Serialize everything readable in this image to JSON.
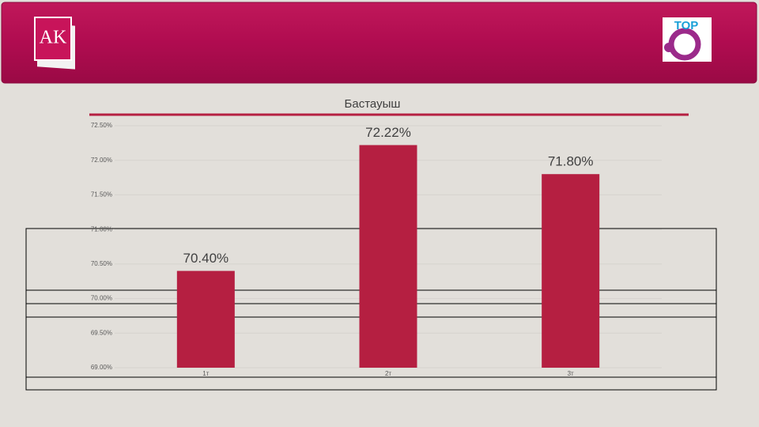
{
  "header": {
    "logo_left": "AK",
    "logo_right": "TOP"
  },
  "chart_data": {
    "type": "bar",
    "title": "Бастауыш",
    "categories": [
      "1т",
      "2т",
      "3т"
    ],
    "values": [
      70.4,
      72.22,
      71.8
    ],
    "value_labels": [
      "70.40%",
      "72.22%",
      "71.80%"
    ],
    "color": "#b51f41",
    "ylim": [
      69,
      72.5
    ],
    "yticks": [
      {
        "value": 69,
        "label": "69.00%"
      },
      {
        "value": 69.5,
        "label": "69.50%"
      },
      {
        "value": 70,
        "label": "70.00%"
      },
      {
        "value": 70.5,
        "label": "70.50%"
      },
      {
        "value": 71,
        "label": "71.00%"
      },
      {
        "value": 71.5,
        "label": "71.50%"
      },
      {
        "value": 72,
        "label": "72.00%"
      },
      {
        "value": 72.5,
        "label": "72.50%"
      }
    ],
    "grid": true
  }
}
